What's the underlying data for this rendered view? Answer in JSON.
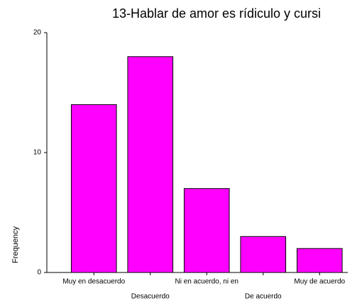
{
  "chart_data": {
    "type": "bar",
    "title": "13-Hablar de amor es rídiculo y cursi",
    "categories": [
      "Muy en desacuerdo",
      "Desacuerdo",
      "Ni en acuerdo, ni en",
      "De acuerdo",
      "Muy de acuerdo"
    ],
    "values": [
      14,
      18,
      7,
      3,
      2
    ],
    "color": "#ff00ff",
    "ylabel": "Frequency",
    "ylim": [
      0,
      20
    ],
    "yticks": [
      0,
      10,
      20
    ],
    "grid": false
  }
}
